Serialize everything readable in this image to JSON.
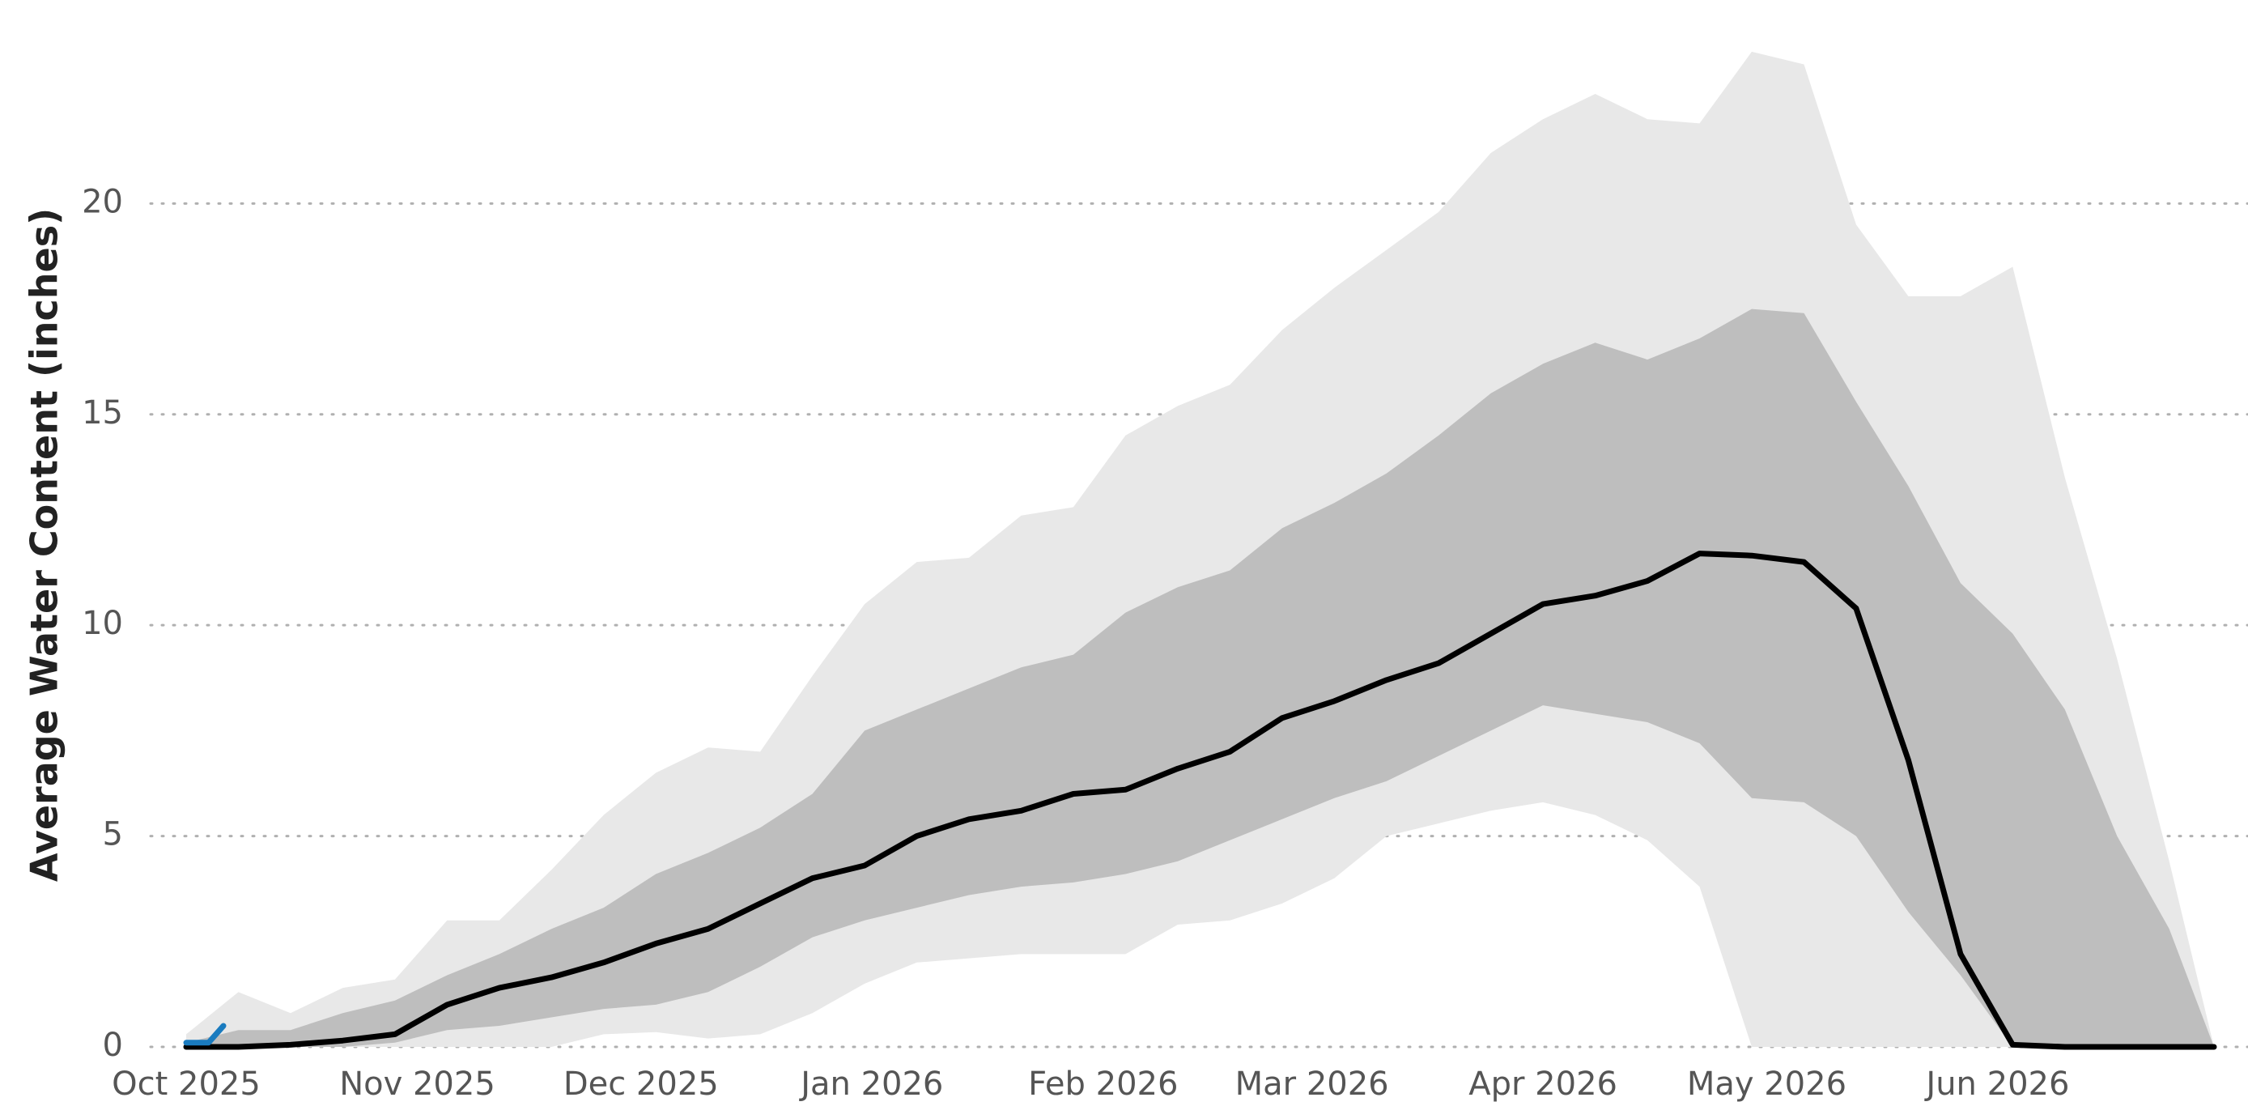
{
  "chart_data": {
    "type": "line",
    "y_label": "Average Water Content (inches)",
    "x": [
      "2025-10-01",
      "2025-10-08",
      "2025-10-15",
      "2025-10-22",
      "2025-10-29",
      "2025-11-05",
      "2025-11-12",
      "2025-11-19",
      "2025-11-26",
      "2025-12-03",
      "2025-12-10",
      "2025-12-17",
      "2025-12-24",
      "2025-12-31",
      "2026-01-07",
      "2026-01-14",
      "2026-01-21",
      "2026-01-28",
      "2026-02-04",
      "2026-02-11",
      "2026-02-18",
      "2026-02-25",
      "2026-03-04",
      "2026-03-11",
      "2026-03-18",
      "2026-03-25",
      "2026-04-01",
      "2026-04-08",
      "2026-04-15",
      "2026-04-22",
      "2026-04-29",
      "2026-05-06",
      "2026-05-13",
      "2026-05-20",
      "2026-05-27",
      "2026-06-03",
      "2026-06-10",
      "2026-06-17",
      "2026-06-24",
      "2026-06-30"
    ],
    "bands": [
      {
        "color": "#e8e8e8",
        "upper": [
          0.3,
          1.3,
          0.8,
          1.4,
          1.6,
          3.0,
          3.0,
          4.2,
          5.5,
          6.5,
          7.1,
          7.0,
          8.8,
          10.5,
          11.5,
          11.6,
          12.6,
          12.8,
          14.5,
          15.2,
          15.7,
          17.0,
          18.0,
          18.9,
          19.8,
          21.2,
          22.0,
          22.6,
          22.0,
          21.9,
          23.6,
          23.3,
          19.5,
          17.8,
          17.8,
          18.5,
          13.5,
          9.2,
          4.4,
          0
        ],
        "lower": [
          0,
          0,
          0,
          0,
          0,
          0,
          0,
          0,
          0.3,
          0.35,
          0.2,
          0.3,
          0.8,
          1.5,
          2.0,
          2.1,
          2.2,
          2.2,
          2.2,
          2.9,
          3.0,
          3.4,
          4.0,
          5.0,
          5.3,
          5.6,
          5.8,
          5.5,
          4.9,
          3.8,
          0,
          0,
          0,
          0,
          0,
          0,
          0,
          0,
          0,
          0
        ]
      },
      {
        "color": "#bebebe",
        "upper": [
          0.1,
          0.4,
          0.4,
          0.8,
          1.1,
          1.7,
          2.2,
          2.8,
          3.3,
          4.1,
          4.6,
          5.2,
          6.0,
          7.5,
          8.0,
          8.5,
          9.0,
          9.3,
          10.3,
          10.9,
          11.3,
          12.3,
          12.9,
          13.6,
          14.5,
          15.5,
          16.2,
          16.7,
          16.3,
          16.8,
          17.5,
          17.4,
          15.3,
          13.3,
          11.0,
          9.8,
          8.0,
          5.0,
          2.8,
          0
        ],
        "lower": [
          0,
          0,
          0,
          0,
          0.1,
          0.4,
          0.5,
          0.7,
          0.9,
          1.0,
          1.3,
          1.9,
          2.6,
          3.0,
          3.3,
          3.6,
          3.8,
          3.9,
          4.1,
          4.4,
          4.9,
          5.4,
          5.9,
          6.3,
          6.9,
          7.5,
          8.1,
          7.9,
          7.7,
          7.2,
          5.9,
          5.8,
          5.0,
          3.2,
          1.7,
          0,
          0,
          0,
          0,
          0
        ]
      }
    ],
    "series": [
      {
        "color": "#000000",
        "values": [
          0,
          0,
          0.05,
          0.15,
          0.3,
          1.0,
          1.4,
          1.65,
          2.0,
          2.45,
          2.8,
          3.4,
          4.0,
          4.3,
          5.0,
          5.4,
          5.6,
          6.0,
          6.1,
          6.6,
          7.0,
          7.8,
          8.2,
          8.7,
          9.1,
          9.8,
          10.5,
          10.7,
          11.05,
          11.7,
          11.65,
          11.5,
          10.4,
          6.8,
          2.2,
          0.05,
          0,
          0,
          0,
          0
        ]
      },
      {
        "color": "#1a7bbf",
        "x": [
          "2025-10-01",
          "2025-10-04",
          "2025-10-06"
        ],
        "values": [
          0.1,
          0.1,
          0.5
        ]
      }
    ],
    "xlim": [
      "2025-10-01",
      "2026-06-30"
    ],
    "xticks": [
      {
        "value": "2025-10-01",
        "label": "Oct 2025"
      },
      {
        "value": "2025-11-01",
        "label": "Nov 2025"
      },
      {
        "value": "2025-12-01",
        "label": "Dec 2025"
      },
      {
        "value": "2026-01-01",
        "label": "Jan 2026"
      },
      {
        "value": "2026-02-01",
        "label": "Feb 2026"
      },
      {
        "value": "2026-03-01",
        "label": "Mar 2026"
      },
      {
        "value": "2026-04-01",
        "label": "Apr 2026"
      },
      {
        "value": "2026-05-01",
        "label": "May 2026"
      },
      {
        "value": "2026-06-01",
        "label": "Jun 2026"
      }
    ],
    "ylim": [
      0,
      24.5
    ],
    "yticks": [
      0,
      5,
      10,
      15,
      20
    ],
    "grid": true
  }
}
